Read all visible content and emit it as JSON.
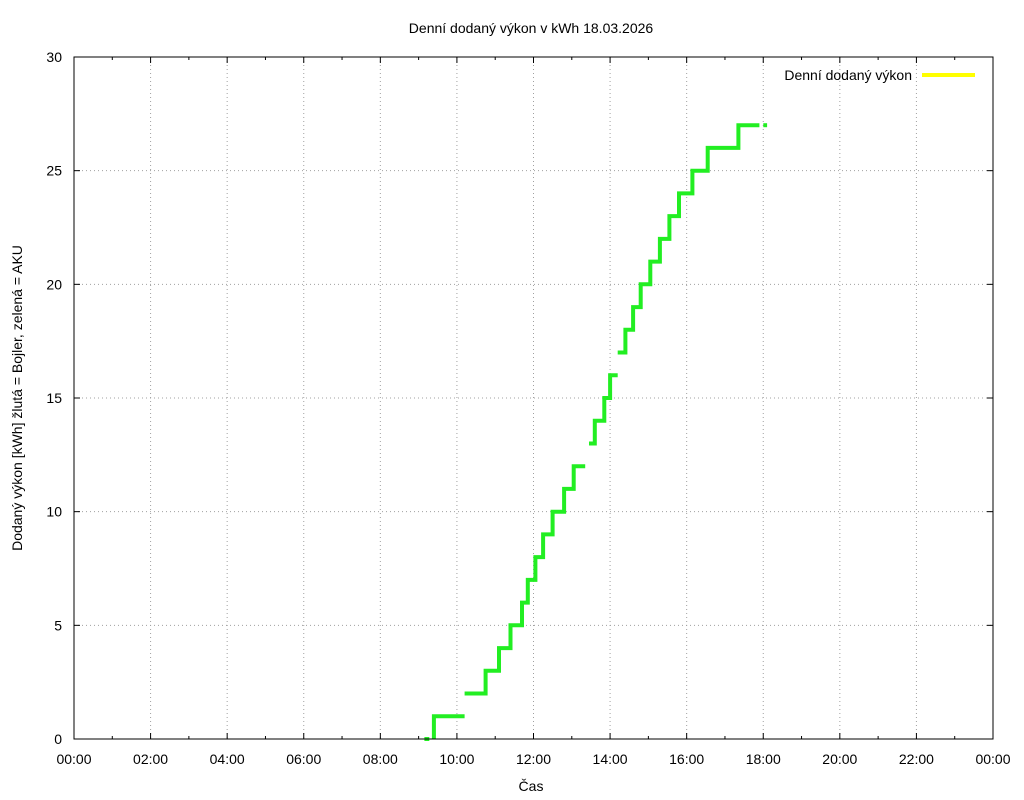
{
  "chart_data": {
    "type": "line",
    "title": "Denní dodaný výkon v kWh 18.03.2026",
    "xlabel": "Čas",
    "ylabel": "Dodaný výkon [kWh]  žlutá = Bojler, zelená = AKU",
    "xlim": [
      0,
      24
    ],
    "ylim": [
      0,
      30
    ],
    "x_ticks": [
      0,
      2,
      4,
      6,
      8,
      10,
      12,
      14,
      16,
      18,
      20,
      22,
      24
    ],
    "x_tick_labels": [
      "00:00",
      "02:00",
      "04:00",
      "06:00",
      "08:00",
      "10:00",
      "12:00",
      "14:00",
      "16:00",
      "18:00",
      "20:00",
      "22:00",
      "00:00"
    ],
    "y_ticks": [
      0,
      5,
      10,
      15,
      20,
      25,
      30
    ],
    "y_tick_labels": [
      "0",
      "5",
      "10",
      "15",
      "20",
      "25",
      "30"
    ],
    "grid": true,
    "legend_position": "top-right",
    "legend": [
      {
        "label": "Denní dodaný výkon",
        "color": "#ffff00"
      }
    ],
    "series": [
      {
        "color": "#22ee22",
        "step": true,
        "segments": [
          [
            [
              9.15,
              0
            ],
            [
              9.28,
              0
            ]
          ],
          [
            [
              9.4,
              0
            ],
            [
              9.4,
              1
            ],
            [
              10.2,
              1
            ]
          ],
          [
            [
              10.2,
              2
            ],
            [
              10.75,
              2
            ],
            [
              10.75,
              3
            ],
            [
              11.1,
              3
            ],
            [
              11.1,
              4
            ],
            [
              11.4,
              4
            ],
            [
              11.4,
              5
            ],
            [
              11.7,
              5
            ],
            [
              11.7,
              6
            ],
            [
              11.85,
              6
            ],
            [
              11.85,
              7
            ],
            [
              12.05,
              7
            ],
            [
              12.05,
              8
            ],
            [
              12.25,
              8
            ],
            [
              12.25,
              9
            ],
            [
              12.5,
              9
            ],
            [
              12.5,
              10
            ],
            [
              12.8,
              10
            ],
            [
              12.8,
              11
            ],
            [
              13.05,
              11
            ],
            [
              13.05,
              12
            ],
            [
              13.35,
              12
            ]
          ],
          [
            [
              13.45,
              13
            ],
            [
              13.6,
              13
            ],
            [
              13.6,
              14
            ],
            [
              13.85,
              14
            ],
            [
              13.85,
              15
            ],
            [
              14.0,
              15
            ],
            [
              14.0,
              16
            ],
            [
              14.2,
              16
            ]
          ],
          [
            [
              14.2,
              17
            ],
            [
              14.4,
              17
            ],
            [
              14.4,
              18
            ],
            [
              14.6,
              18
            ],
            [
              14.6,
              19
            ],
            [
              14.8,
              19
            ],
            [
              14.8,
              20
            ],
            [
              15.05,
              20
            ],
            [
              15.05,
              21
            ],
            [
              15.3,
              21
            ],
            [
              15.3,
              22
            ],
            [
              15.55,
              22
            ],
            [
              15.55,
              23
            ],
            [
              15.8,
              23
            ],
            [
              15.8,
              24
            ],
            [
              16.15,
              24
            ],
            [
              16.15,
              25
            ],
            [
              16.55,
              25
            ],
            [
              16.55,
              26
            ],
            [
              17.35,
              26
            ],
            [
              17.35,
              27
            ],
            [
              17.9,
              27
            ]
          ],
          [
            [
              18.0,
              27
            ],
            [
              18.1,
              27
            ]
          ]
        ]
      }
    ]
  }
}
